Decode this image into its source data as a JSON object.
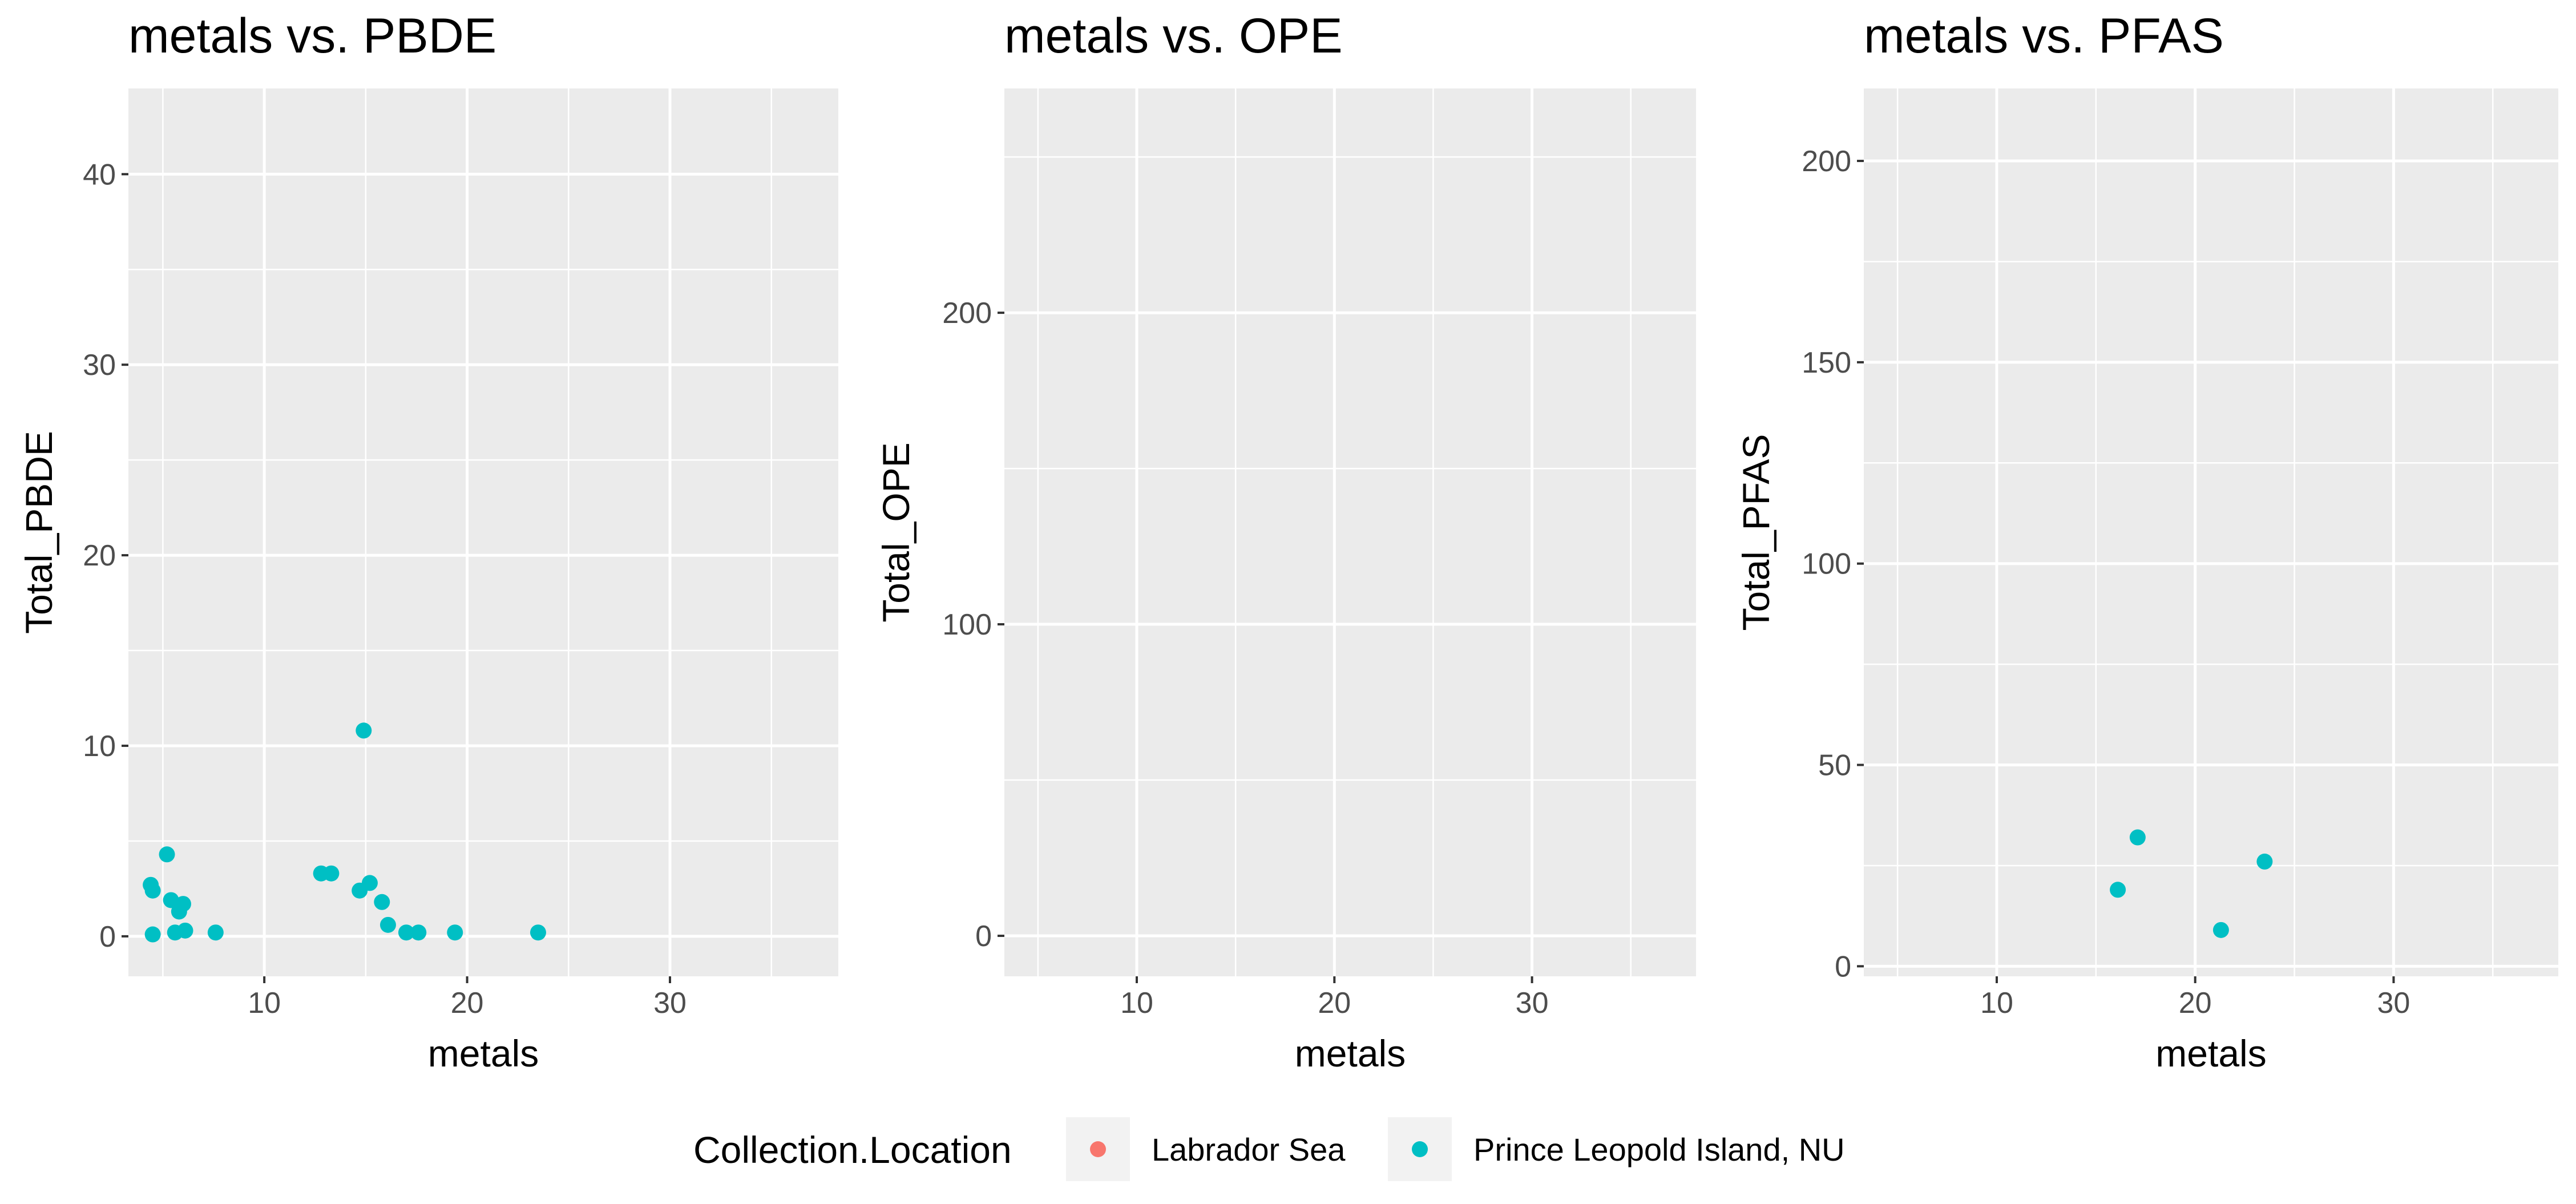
{
  "chart_data": [
    {
      "type": "scatter",
      "title": "metals vs. PBDE",
      "xlabel": "metals",
      "ylabel": "Total_PBDE",
      "xlim": [
        3.3,
        38.3
      ],
      "ylim": [
        -2.1,
        44.5
      ],
      "xticks": [
        10,
        20,
        30
      ],
      "yticks": [
        0,
        10,
        20,
        30,
        40
      ],
      "grid": true,
      "series": [
        {
          "name": "Prince Leopold Island, NU",
          "color": "#00BFC4",
          "points": [
            [
              4.4,
              2.7
            ],
            [
              4.5,
              2.4
            ],
            [
              4.5,
              0.1
            ],
            [
              5.2,
              4.3
            ],
            [
              5.4,
              1.9
            ],
            [
              5.6,
              0.2
            ],
            [
              5.8,
              1.3
            ],
            [
              6.0,
              1.7
            ],
            [
              6.1,
              0.3
            ],
            [
              7.6,
              0.2
            ],
            [
              12.8,
              3.3
            ],
            [
              13.3,
              3.3
            ],
            [
              14.7,
              2.4
            ],
            [
              14.9,
              10.8
            ],
            [
              15.2,
              2.8
            ],
            [
              15.8,
              1.8
            ],
            [
              16.1,
              0.6
            ],
            [
              17.0,
              0.2
            ],
            [
              17.6,
              0.2
            ],
            [
              19.4,
              0.2
            ],
            [
              23.5,
              0.2
            ]
          ]
        }
      ]
    },
    {
      "type": "scatter",
      "title": "metals vs. OPE",
      "xlabel": "metals",
      "ylabel": "Total_OPE",
      "xlim": [
        3.3,
        38.3
      ],
      "ylim": [
        -13,
        272
      ],
      "xticks": [
        10,
        20,
        30
      ],
      "yticks": [
        0,
        100,
        200
      ],
      "grid": true,
      "series": []
    },
    {
      "type": "scatter",
      "title": "metals vs. PFAS",
      "xlabel": "metals",
      "ylabel": "Total_PFAS",
      "xlim": [
        3.3,
        38.3
      ],
      "ylim": [
        -2.5,
        218
      ],
      "xticks": [
        10,
        20,
        30
      ],
      "yticks": [
        0,
        50,
        100,
        150,
        200
      ],
      "grid": true,
      "series": [
        {
          "name": "Prince Leopold Island, NU",
          "color": "#00BFC4",
          "points": [
            [
              16.1,
              19
            ],
            [
              17.1,
              32
            ],
            [
              21.3,
              9
            ],
            [
              23.5,
              26
            ]
          ]
        }
      ]
    }
  ],
  "legend": {
    "title": "Collection.Location",
    "position": "bottom",
    "items": [
      {
        "label": "Labrador Sea",
        "color": "#F8766D"
      },
      {
        "label": "Prince Leopold Island, NU",
        "color": "#00BFC4"
      }
    ]
  },
  "colors": {
    "panel_background": "#EBEBEB",
    "grid": "#FFFFFF",
    "tick_text": "#4D4D4D"
  }
}
